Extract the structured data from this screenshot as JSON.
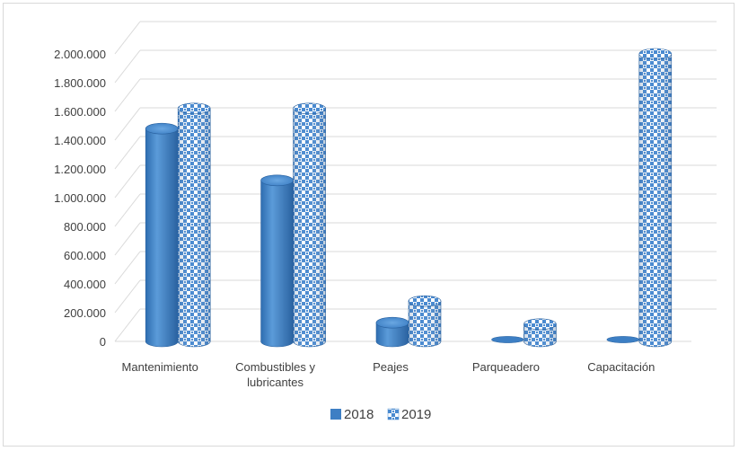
{
  "chart_data": {
    "type": "bar",
    "variant": "3d-cylinder",
    "title": "",
    "xlabel": "",
    "ylabel": "",
    "ylim": [
      0,
      2000000
    ],
    "ytick_step": 200000,
    "y_tick_labels": [
      "0",
      "200.000",
      "400.000",
      "600.000",
      "800.000",
      "1.000.000",
      "1.200.000",
      "1.400.000",
      "1.600.000",
      "1.800.000",
      "2.000.000"
    ],
    "categories": [
      [
        "Mantenimiento"
      ],
      [
        "Combustibles y",
        "lubricantes"
      ],
      [
        "Peajes"
      ],
      [
        "Parqueadero"
      ],
      [
        "Capacitación"
      ]
    ],
    "series": [
      {
        "name": "2018",
        "color": "#3d7fc4",
        "pattern": "solid",
        "values": [
          1480000,
          1120000,
          130000,
          0,
          0
        ]
      },
      {
        "name": "2019",
        "color": "#3d7fc4",
        "pattern": "checkered",
        "values": [
          1620000,
          1620000,
          280000,
          120000,
          2000000
        ]
      }
    ],
    "grid": true,
    "legend_position": "bottom"
  }
}
